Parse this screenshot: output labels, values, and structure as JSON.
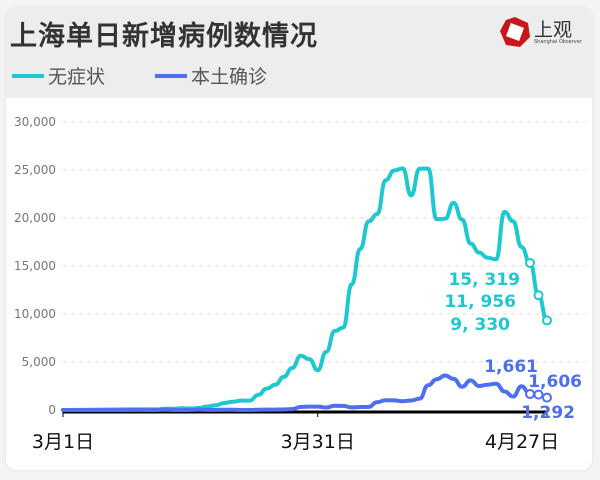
{
  "header": {
    "title": "上海单日新增病例数情况",
    "logo_text": "上观",
    "logo_subtext": "Shanghai Observer",
    "logo_color": "#c8161d"
  },
  "chart_data": {
    "type": "line",
    "title": "上海单日新增病例数情况",
    "x_tick_labels": [
      "3月1日",
      "3月31日",
      "4月27日"
    ],
    "x_range": [
      "3月1日",
      "4月27日"
    ],
    "ylim": [
      0,
      30000
    ],
    "y_ticks": [
      "0",
      "5,000",
      "10,000",
      "15,000",
      "20,000",
      "25,000",
      "30,000"
    ],
    "grid": "horizontal dashed",
    "legend_placement": "top-left",
    "series": [
      {
        "name": "无症状",
        "color": "#1ec8cf",
        "values": [
          1,
          2,
          14,
          16,
          28,
          45,
          48,
          62,
          76,
          64,
          78,
          64,
          128,
          130,
          197,
          150,
          202,
          366,
          492,
          734,
          865,
          977,
          979,
          1580,
          2231,
          2631,
          3450,
          4381,
          5656,
          5298,
          4144,
          6051,
          8226,
          8581,
          13086,
          16766,
          19660,
          20398,
          23937,
          24944,
          25173,
          22348,
          25141,
          25146,
          19872,
          19923,
          21582,
          19831,
          17332,
          16407,
          15861,
          15698,
          20634,
          19657,
          16983,
          15319,
          11956,
          9330
        ],
        "labels": [
          "15, 319",
          "11, 956",
          "9, 330"
        ]
      },
      {
        "name": "本土确诊",
        "color": "#4d6ff0",
        "values": [
          0,
          0,
          3,
          3,
          0,
          3,
          4,
          3,
          3,
          11,
          5,
          1,
          41,
          5,
          5,
          8,
          57,
          8,
          17,
          24,
          31,
          4,
          4,
          29,
          38,
          45,
          50,
          96,
          326,
          355,
          358,
          260,
          438,
          425,
          268,
          311,
          322,
          824,
          1015,
          1006,
          914,
          994,
          1189,
          2573,
          3200,
          3590,
          3238,
          2417,
          3084,
          2494,
          2634,
          2736,
          1931,
          1401,
          2472,
          1661,
          1606,
          1292
        ],
        "labels": [
          "1,661",
          "1,606",
          "1,292"
        ]
      }
    ]
  }
}
